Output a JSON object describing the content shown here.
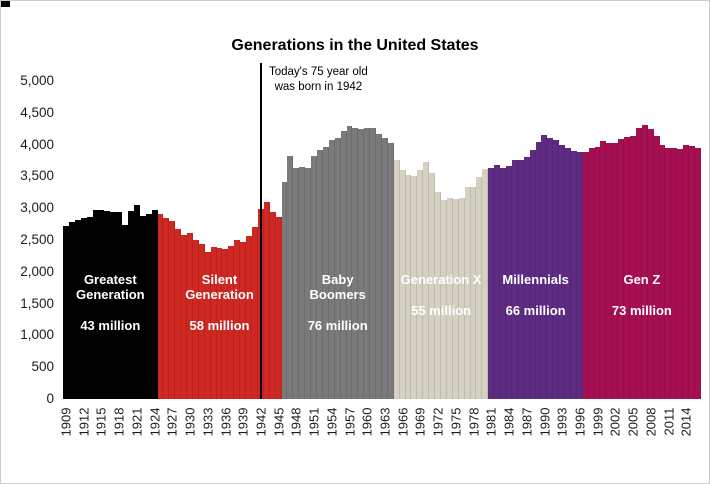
{
  "title": "Generations in the United States",
  "annotation": {
    "line1": "Today's 75 year old",
    "line2": "was born in 1942",
    "year": 1942
  },
  "y_axis": {
    "tick_labels": [
      "5,000",
      "4,500",
      "4,000",
      "3,500",
      "3,000",
      "2,500",
      "2,000",
      "1,500",
      "1,000",
      "500",
      "0"
    ],
    "min": 0,
    "max": 5000,
    "step": 500
  },
  "x_axis": {
    "tick_labels": [
      "1909",
      "1912",
      "1915",
      "1918",
      "1921",
      "1924",
      "1927",
      "1930",
      "1933",
      "1936",
      "1939",
      "1942",
      "1945",
      "1948",
      "1951",
      "1954",
      "1957",
      "1960",
      "1963",
      "1966",
      "1969",
      "1972",
      "1975",
      "1978",
      "1981",
      "1984",
      "1987",
      "1990",
      "1993",
      "1996",
      "1999",
      "2002",
      "2005",
      "2008",
      "2011",
      "2014"
    ]
  },
  "generations": [
    {
      "name_lines": [
        "Greatest",
        "Generation"
      ],
      "population": "43 million",
      "start_year": 1909,
      "end_year": 1924,
      "color": "#000000",
      "text_color": "#ffffff"
    },
    {
      "name_lines": [
        "Silent",
        "Generation"
      ],
      "population": "58 million",
      "start_year": 1925,
      "end_year": 1945,
      "color": "#cf2823",
      "text_color": "#ffffff"
    },
    {
      "name_lines": [
        "Baby",
        "Boomers"
      ],
      "population": "76 million",
      "start_year": 1946,
      "end_year": 1964,
      "color": "#7a7a7a",
      "text_color": "#ffffff"
    },
    {
      "name_lines": [
        "Generation X"
      ],
      "population": "55 million",
      "start_year": 1965,
      "end_year": 1980,
      "color": "#d4d0c2",
      "text_color": "#ffffff"
    },
    {
      "name_lines": [
        "Millennials"
      ],
      "population": "66 million",
      "start_year": 1981,
      "end_year": 1996,
      "color": "#5d2c82",
      "text_color": "#ffffff"
    },
    {
      "name_lines": [
        "Gen Z"
      ],
      "population": "73 million",
      "start_year": 1997,
      "end_year": 2016,
      "color": "#a60f51",
      "text_color": "#ffffff"
    }
  ],
  "chart_data": {
    "type": "bar",
    "title": "Generations in the United States",
    "xlabel": "",
    "ylabel": "",
    "ylim": [
      0,
      5000
    ],
    "grid": false,
    "legend_position": "none",
    "start_year": 1909,
    "end_year": 2016,
    "values": [
      2718,
      2777,
      2809,
      2840,
      2869,
      2966,
      2965,
      2964,
      2944,
      2948,
      2740,
      2950,
      3055,
      2882,
      2910,
      2979,
      2909,
      2839,
      2802,
      2674,
      2582,
      2618,
      2506,
      2440,
      2307,
      2396,
      2377,
      2355,
      2413,
      2496,
      2466,
      2559,
      2703,
      2989,
      3104,
      2939,
      2858,
      3411,
      3817,
      3637,
      3649,
      3632,
      3823,
      3913,
      3965,
      4078,
      4097,
      4218,
      4300,
      4255,
      4245,
      4258,
      4268,
      4167,
      4098,
      4027,
      3760,
      3606,
      3521,
      3502,
      3600,
      3731,
      3556,
      3258,
      3137,
      3160,
      3144,
      3168,
      3327,
      3333,
      3494,
      3612,
      3629,
      3681,
      3639,
      3669,
      3761,
      3757,
      3809,
      3910,
      4041,
      4158,
      4111,
      4065,
      4000,
      3953,
      3900,
      3891,
      3881,
      3942,
      3959,
      4059,
      4026,
      4022,
      4090,
      4112,
      4138,
      4266,
      4316,
      4248,
      4131,
      3999,
      3954,
      3953,
      3932,
      3988,
      3978,
      3946
    ],
    "annotation_line_year": 1942
  }
}
